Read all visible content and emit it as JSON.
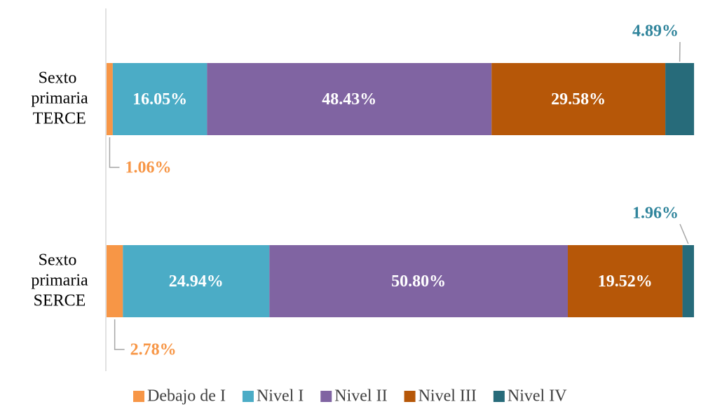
{
  "chart_data": {
    "type": "stacked-bar-horizontal",
    "categories": [
      "Sexto primaria TERCE",
      "Sexto primaria SERCE"
    ],
    "xlim": [
      0,
      100
    ],
    "series": [
      {
        "name": "Debajo de I",
        "color": "#f79646",
        "values": [
          1.06,
          2.78
        ],
        "value_labels": [
          "1.06%",
          "2.78%"
        ]
      },
      {
        "name": "Nivel I",
        "color": "#4bacc6",
        "values": [
          16.05,
          24.94
        ],
        "value_labels": [
          "16.05%",
          "24.94%"
        ]
      },
      {
        "name": "Nivel II",
        "color": "#8064a2",
        "values": [
          48.43,
          50.8
        ],
        "value_labels": [
          "48.43%",
          "50.80%"
        ]
      },
      {
        "name": "Nivel III",
        "color": "#b65708",
        "values": [
          29.58,
          19.52
        ],
        "value_labels": [
          "29.58%",
          "19.52%"
        ]
      },
      {
        "name": "Nivel IV",
        "color": "#276b7a",
        "values": [
          4.89,
          1.96
        ],
        "value_labels": [
          "4.89%",
          "1.96%"
        ]
      }
    ],
    "legend": "bottom"
  }
}
